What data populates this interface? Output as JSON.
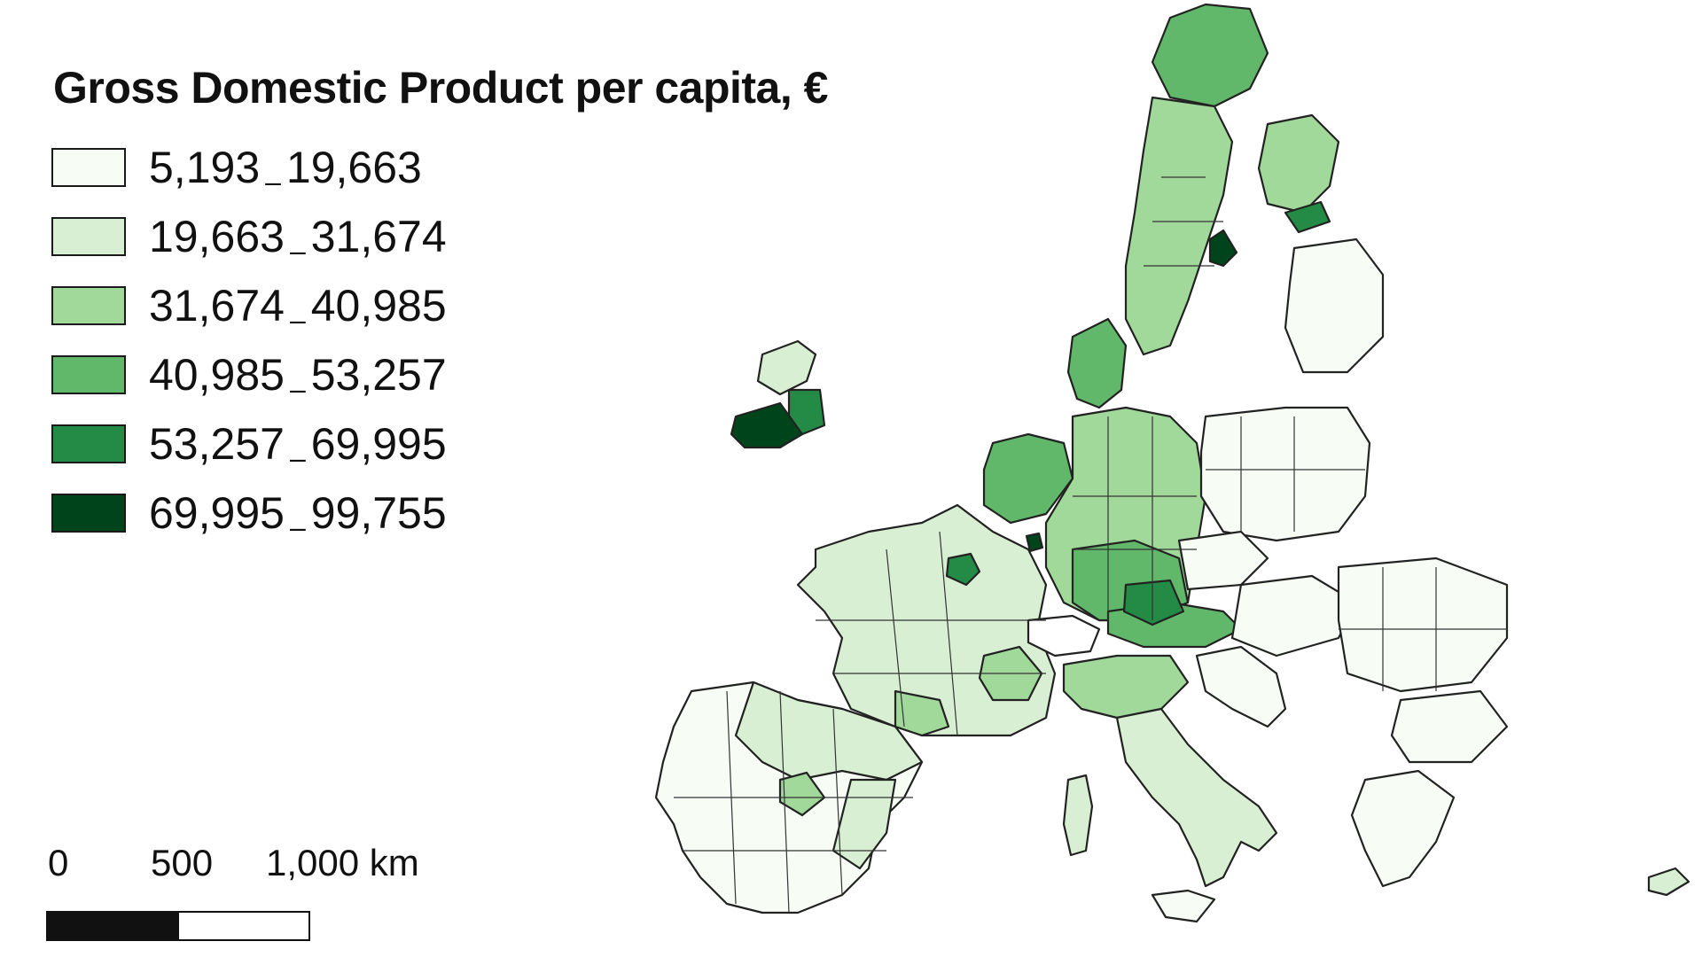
{
  "map": {
    "title": "Gross Domestic Product per capita, €",
    "legend": [
      {
        "from": "5,193",
        "to": "19,663",
        "color": "#f7fcf5"
      },
      {
        "from": "19,663",
        "to": "31,674",
        "color": "#d9efd3"
      },
      {
        "from": "31,674",
        "to": "40,985",
        "color": "#a1d99b"
      },
      {
        "from": "40,985",
        "to": "53,257",
        "color": "#62b86a"
      },
      {
        "from": "53,257",
        "to": "69,995",
        "color": "#238b45"
      },
      {
        "from": "69,995",
        "to": "99,755",
        "color": "#00441b"
      }
    ],
    "range_separator": "–",
    "scale_bar": {
      "labels": [
        "0",
        "500",
        "1,000 km"
      ]
    }
  }
}
